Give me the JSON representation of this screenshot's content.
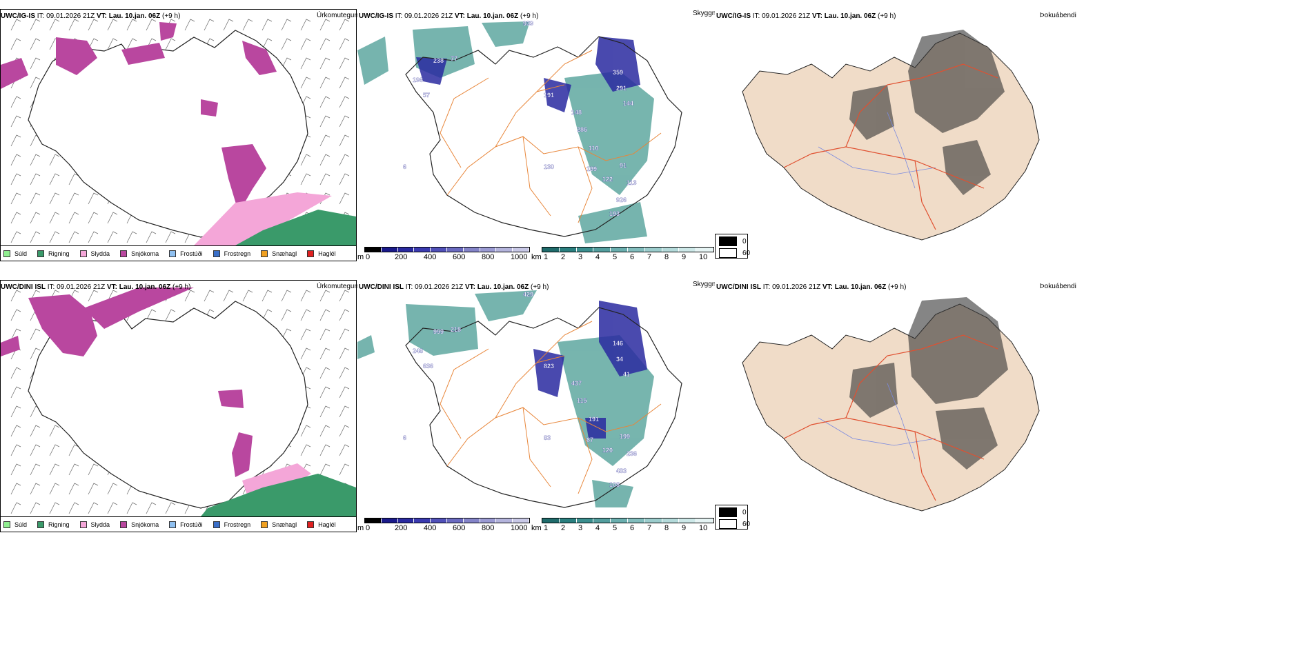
{
  "rows": [
    {
      "precip": {
        "model": "UWC/IG-IS",
        "it_label": "IT:",
        "it_value": "09.01.2026 21Z",
        "vt_label": "VT:",
        "vt_value": "Lau. 10.jan. 06Z",
        "lead": "(+9 h)",
        "field": "Úrkomutegund"
      },
      "vis": {
        "model": "UWC/IG-IS",
        "it_label": "IT:",
        "it_value": "09.01.2026 21Z",
        "vt_label": "VT:",
        "vt_value": "Lau. 10.jan. 06Z",
        "lead": "(+9 h)",
        "field": "Skyggni",
        "cloud_labels": [
          "939",
          "238",
          "77",
          "196",
          "57",
          "191",
          "148",
          "286",
          "110",
          "199",
          "122",
          "91",
          "113",
          "926",
          "193",
          "130",
          "359",
          "291",
          "144",
          "6"
        ]
      },
      "fog": {
        "model": "UWC/IG-IS",
        "it_label": "IT:",
        "it_value": "09.01.2026 21Z",
        "vt_label": "VT:",
        "vt_value": "Lau. 10.jan. 06Z",
        "lead": "(+9 h)",
        "field": "Þokuábendi"
      }
    },
    {
      "precip": {
        "model": "UWC/DINI ISL",
        "it_label": "IT:",
        "it_value": "09.01.2026 21Z",
        "vt_label": "VT:",
        "vt_value": "Lau. 10.jan. 06Z",
        "lead": "(+9 h)",
        "field": "Úrkomutegund"
      },
      "vis": {
        "model": "UWC/DINI ISL",
        "it_label": "IT:",
        "it_value": "09.01.2026 21Z",
        "vt_label": "VT:",
        "vt_value": "Lau. 10.jan. 06Z",
        "lead": "(+9 h)",
        "field": "Skyggni",
        "cloud_labels": [
          "429",
          "999",
          "218",
          "248",
          "636",
          "823",
          "437",
          "115",
          "191",
          "87",
          "120",
          "199",
          "236",
          "433",
          "108",
          "83",
          "146",
          "34",
          "41",
          "6"
        ]
      },
      "fog": {
        "model": "UWC/DINI ISL",
        "it_label": "IT:",
        "it_value": "09.01.2026 21Z",
        "vt_label": "VT:",
        "vt_value": "Lau. 10.jan. 06Z",
        "lead": "(+9 h)",
        "field": "Þokuábendi"
      }
    }
  ],
  "precip_legend": [
    {
      "label": "Súld",
      "color": "#90ee90"
    },
    {
      "label": "Rigning",
      "color": "#3a9a6a"
    },
    {
      "label": "Slydda",
      "color": "#f4a6d8"
    },
    {
      "label": "Snjókoma",
      "color": "#b9479f"
    },
    {
      "label": "Frostúði",
      "color": "#8fc0f0"
    },
    {
      "label": "Frostregn",
      "color": "#3a6fc8"
    },
    {
      "label": "Snæhagl",
      "color": "#f0a020"
    },
    {
      "label": "Haglél",
      "color": "#e02020"
    }
  ],
  "ceiling_bar": {
    "unit": "m",
    "ticks": [
      "0",
      "200",
      "400",
      "600",
      "800",
      "1000"
    ],
    "colors": [
      "#000000",
      "#1a1a8a",
      "#2a2aa0",
      "#3a3ab0",
      "#5050b8",
      "#6a6ac0",
      "#8484c8",
      "#9a9ad2",
      "#b4b4dc",
      "#c8c8e6"
    ]
  },
  "visibility_bar": {
    "unit": "km",
    "ticks": [
      "1",
      "2",
      "3",
      "4",
      "5",
      "6",
      "7",
      "8",
      "9",
      "10"
    ],
    "colors": [
      "#1f6b6b",
      "#2a7f7f",
      "#3b8f8f",
      "#539e9e",
      "#6aaeae",
      "#82bdbd",
      "#9bcccc",
      "#b4dada",
      "#cde8e8",
      "#e6f4f4"
    ]
  },
  "fog_legend": {
    "items": [
      {
        "label": "0",
        "color": "#000000"
      },
      {
        "label": "60",
        "color": "#ffffff"
      }
    ]
  }
}
